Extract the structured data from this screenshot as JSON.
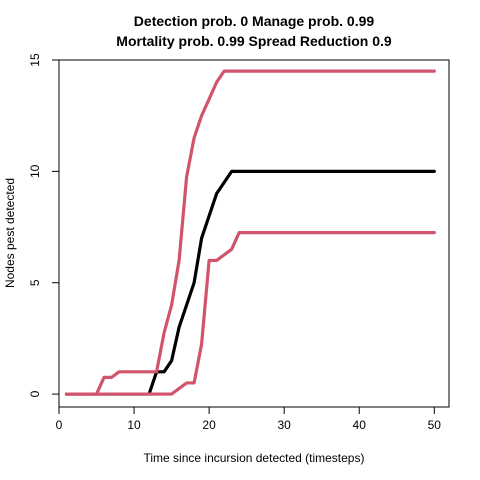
{
  "chart_data": {
    "type": "line",
    "title_line1": "Detection prob. 0 Manage prob. 0.99",
    "title_line2": "Mortality prob. 0.99 Spread Reduction 0.9",
    "xlabel": "Time since incursion detected (timesteps)",
    "ylabel": "Nodes pest detected",
    "xlim": [
      0,
      51.96
    ],
    "ylim": [
      -0.58,
      15.0
    ],
    "xticks": [
      0,
      10,
      20,
      30,
      40,
      50
    ],
    "yticks": [
      0,
      5,
      10,
      15
    ],
    "grid": false,
    "legend": "none",
    "series": [
      {
        "color": "#000000",
        "x": [
          1,
          2,
          3,
          4,
          5,
          6,
          7,
          8,
          9,
          10,
          11,
          12,
          13,
          14,
          15,
          16,
          17,
          18,
          19,
          20,
          21,
          22,
          23,
          24,
          25,
          26,
          27,
          28,
          29,
          30,
          31,
          32,
          33,
          34,
          35,
          36,
          37,
          38,
          39,
          40,
          41,
          42,
          43,
          44,
          45,
          46,
          47,
          48,
          49,
          50
        ],
        "values": [
          0,
          0,
          0,
          0,
          0,
          0,
          0,
          0,
          0,
          0,
          0,
          0,
          1,
          1,
          1.5,
          3,
          4,
          5,
          7,
          8,
          9,
          9.5,
          10,
          10,
          10,
          10,
          10,
          10,
          10,
          10,
          10,
          10,
          10,
          10,
          10,
          10,
          10,
          10,
          10,
          10,
          10,
          10,
          10,
          10,
          10,
          10,
          10,
          10,
          10,
          10
        ]
      },
      {
        "color": "#d1546c",
        "x": [
          1,
          2,
          3,
          4,
          5,
          6,
          7,
          8,
          9,
          10,
          11,
          12,
          13,
          14,
          15,
          16,
          17,
          18,
          19,
          20,
          21,
          22,
          23,
          24,
          25,
          26,
          27,
          28,
          29,
          30,
          31,
          32,
          33,
          34,
          35,
          36,
          37,
          38,
          39,
          40,
          41,
          42,
          43,
          44,
          45,
          46,
          47,
          48,
          49,
          50
        ],
        "values": [
          0,
          0,
          0,
          0,
          0,
          0.75,
          0.75,
          1,
          1,
          1,
          1,
          1,
          1,
          2.75,
          4,
          6,
          9.75,
          11.5,
          12.5,
          13.25,
          14,
          14.5,
          14.5,
          14.5,
          14.5,
          14.5,
          14.5,
          14.5,
          14.5,
          14.5,
          14.5,
          14.5,
          14.5,
          14.5,
          14.5,
          14.5,
          14.5,
          14.5,
          14.5,
          14.5,
          14.5,
          14.5,
          14.5,
          14.5,
          14.5,
          14.5,
          14.5,
          14.5,
          14.5,
          14.5
        ]
      },
      {
        "color": "#d1546c",
        "x": [
          1,
          2,
          3,
          4,
          5,
          6,
          7,
          8,
          9,
          10,
          11,
          12,
          13,
          14,
          15,
          16,
          17,
          18,
          19,
          20,
          21,
          22,
          23,
          24,
          25,
          26,
          27,
          28,
          29,
          30,
          31,
          32,
          33,
          34,
          35,
          36,
          37,
          38,
          39,
          40,
          41,
          42,
          43,
          44,
          45,
          46,
          47,
          48,
          49,
          50
        ],
        "values": [
          0,
          0,
          0,
          0,
          0,
          0,
          0,
          0,
          0,
          0,
          0,
          0,
          0,
          0,
          0,
          0.25,
          0.5,
          0.5,
          2.25,
          6,
          6,
          6.25,
          6.5,
          7.25,
          7.25,
          7.25,
          7.25,
          7.25,
          7.25,
          7.25,
          7.25,
          7.25,
          7.25,
          7.25,
          7.25,
          7.25,
          7.25,
          7.25,
          7.25,
          7.25,
          7.25,
          7.25,
          7.25,
          7.25,
          7.25,
          7.25,
          7.25,
          7.25,
          7.25,
          7.25
        ]
      }
    ]
  }
}
